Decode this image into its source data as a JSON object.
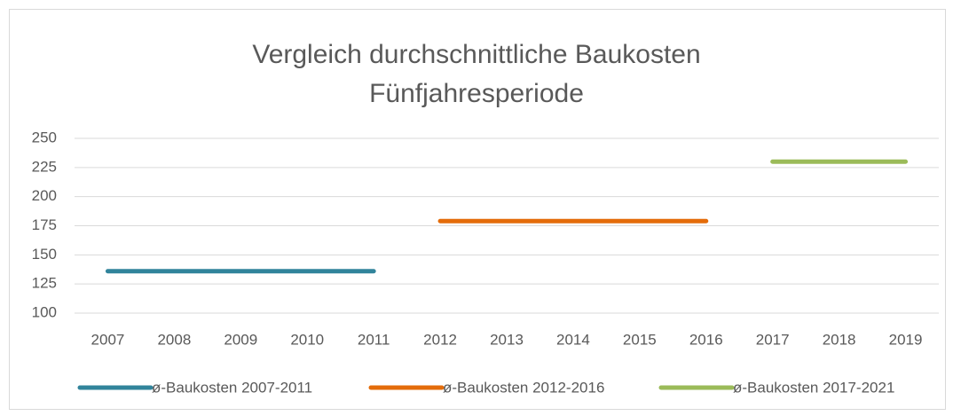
{
  "chart_data": {
    "type": "line",
    "title": "Vergleich durchschnittliche Baukosten Fünfjahresperiode",
    "categories": [
      "2007",
      "2008",
      "2009",
      "2010",
      "2011",
      "2012",
      "2013",
      "2014",
      "2015",
      "2016",
      "2017",
      "2018",
      "2019"
    ],
    "series": [
      {
        "name": "ø-Baukosten 2007-2011",
        "color": "#31849b",
        "values": [
          136,
          136,
          136,
          136,
          136,
          null,
          null,
          null,
          null,
          null,
          null,
          null,
          null
        ]
      },
      {
        "name": "ø-Baukosten 2012-2016",
        "color": "#e46c0a",
        "values": [
          null,
          null,
          null,
          null,
          null,
          179,
          179,
          179,
          179,
          179,
          null,
          null,
          null
        ]
      },
      {
        "name": "ø-Baukosten 2017-2021",
        "color": "#9bbb59",
        "values": [
          null,
          null,
          null,
          null,
          null,
          null,
          null,
          null,
          null,
          null,
          230,
          230,
          230
        ]
      }
    ],
    "ylim": [
      100,
      250
    ],
    "yticks": [
      100,
      125,
      150,
      175,
      200,
      225,
      250
    ],
    "grid": true,
    "legend": "bottom"
  }
}
